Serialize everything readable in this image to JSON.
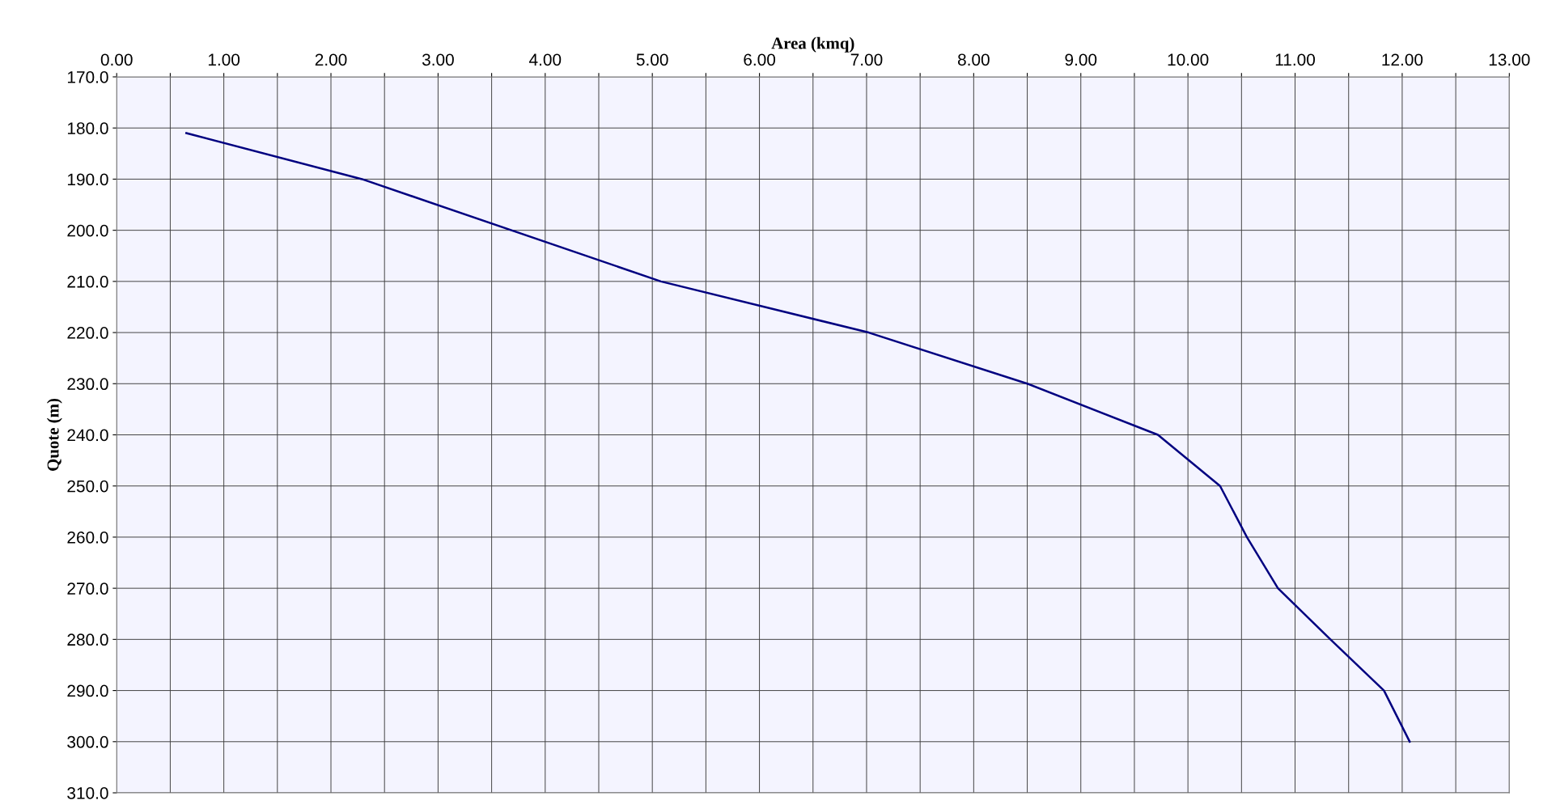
{
  "chart_data": {
    "type": "line",
    "xlabel": "Area (kmq)",
    "ylabel": "Quote (m)",
    "x": [
      0.65,
      2.29,
      5.08,
      7.02,
      8.5,
      9.72,
      10.3,
      10.55,
      10.84,
      11.33,
      11.83,
      12.07
    ],
    "series": [
      {
        "color": "#000080",
        "values": [
          181,
          190,
          210,
          220,
          230,
          240,
          250,
          260,
          270,
          280,
          290,
          300
        ]
      }
    ],
    "xlim": [
      0,
      13
    ],
    "xticks": [
      {
        "value": 0,
        "label": "0.00"
      },
      {
        "value": 0.5,
        "label": null
      },
      {
        "value": 1,
        "label": "1.00"
      },
      {
        "value": 1.5,
        "label": null
      },
      {
        "value": 2,
        "label": "2.00"
      },
      {
        "value": 2.5,
        "label": null
      },
      {
        "value": 3,
        "label": "3.00"
      },
      {
        "value": 3.5,
        "label": null
      },
      {
        "value": 4,
        "label": "4.00"
      },
      {
        "value": 4.5,
        "label": null
      },
      {
        "value": 5,
        "label": "5.00"
      },
      {
        "value": 5.5,
        "label": null
      },
      {
        "value": 6,
        "label": "6.00"
      },
      {
        "value": 6.5,
        "label": null
      },
      {
        "value": 7,
        "label": "7.00"
      },
      {
        "value": 7.5,
        "label": null
      },
      {
        "value": 8,
        "label": "8.00"
      },
      {
        "value": 8.5,
        "label": null
      },
      {
        "value": 9,
        "label": "9.00"
      },
      {
        "value": 9.5,
        "label": null
      },
      {
        "value": 10,
        "label": "10.00"
      },
      {
        "value": 10.5,
        "label": null
      },
      {
        "value": 11,
        "label": "11.00"
      },
      {
        "value": 11.5,
        "label": null
      },
      {
        "value": 12,
        "label": "12.00"
      },
      {
        "value": 12.5,
        "label": null
      },
      {
        "value": 13,
        "label": "13.00"
      }
    ],
    "ylim": [
      310,
      170
    ],
    "yticks": [
      {
        "value": 170,
        "label": "170.0"
      },
      {
        "value": 180,
        "label": "180.0"
      },
      {
        "value": 190,
        "label": "190.0"
      },
      {
        "value": 200,
        "label": "200.0"
      },
      {
        "value": 210,
        "label": "210.0"
      },
      {
        "value": 220,
        "label": "220.0"
      },
      {
        "value": 230,
        "label": "230.0"
      },
      {
        "value": 240,
        "label": "240.0"
      },
      {
        "value": 250,
        "label": "250.0"
      },
      {
        "value": 260,
        "label": "260.0"
      },
      {
        "value": 270,
        "label": "270.0"
      },
      {
        "value": 280,
        "label": "280.0"
      },
      {
        "value": 290,
        "label": "290.0"
      },
      {
        "value": 300,
        "label": "300.0"
      },
      {
        "value": 310,
        "label": "310.0"
      }
    ],
    "grid": true,
    "marker": "none",
    "line_style": "solid",
    "legend": false
  }
}
